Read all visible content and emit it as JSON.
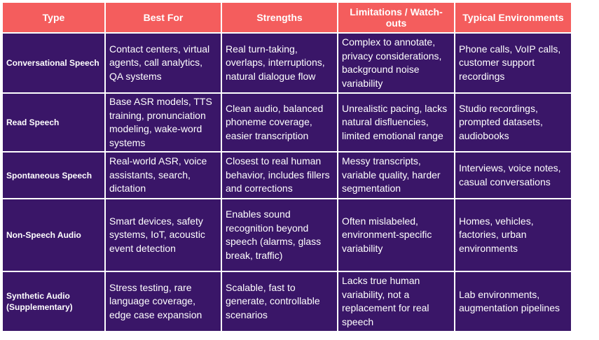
{
  "table": {
    "header": [
      "Type",
      "Best For",
      "Strengths",
      "Limitations / Watch-outs",
      "Typical Environments"
    ],
    "rows": [
      [
        "Conversational Speech",
        "Contact centers, virtual agents, call analytics, QA systems",
        "Real turn-taking, overlaps, interruptions, natural dialogue flow",
        "Complex to annotate, privacy considerations, background noise variability",
        "Phone calls, VoIP calls, customer support recordings"
      ],
      [
        "Read Speech",
        "Base ASR models, TTS training, pronunciation modeling, wake-word systems",
        "Clean audio, balanced phoneme coverage, easier transcription",
        "Unrealistic pacing, lacks natural disfluencies, limited emotional range",
        "Studio recordings, prompted datasets, audiobooks"
      ],
      [
        "Spontaneous Speech",
        "Real-world ASR, voice assistants, search, dictation",
        "Closest to real human behavior, includes fillers and corrections",
        "Messy transcripts, variable quality, harder segmentation",
        "Interviews, voice notes, casual conversations"
      ],
      [
        "Non-Speech Audio",
        "Smart devices, safety systems, IoT, acoustic event detection",
        "Enables sound recognition beyond speech (alarms, glass break, traffic)",
        "Often mislabeled, environment-specific variability",
        "Homes, vehicles, factories, urban environments"
      ],
      [
        "Synthetic Audio (Supplementary)",
        "Stress testing, rare language coverage, edge case expansion",
        "Scalable, fast to generate, controllable scenarios",
        "Lacks true human variability, not a replacement for real speech",
        "Lab environments, augmentation pipelines"
      ]
    ]
  }
}
